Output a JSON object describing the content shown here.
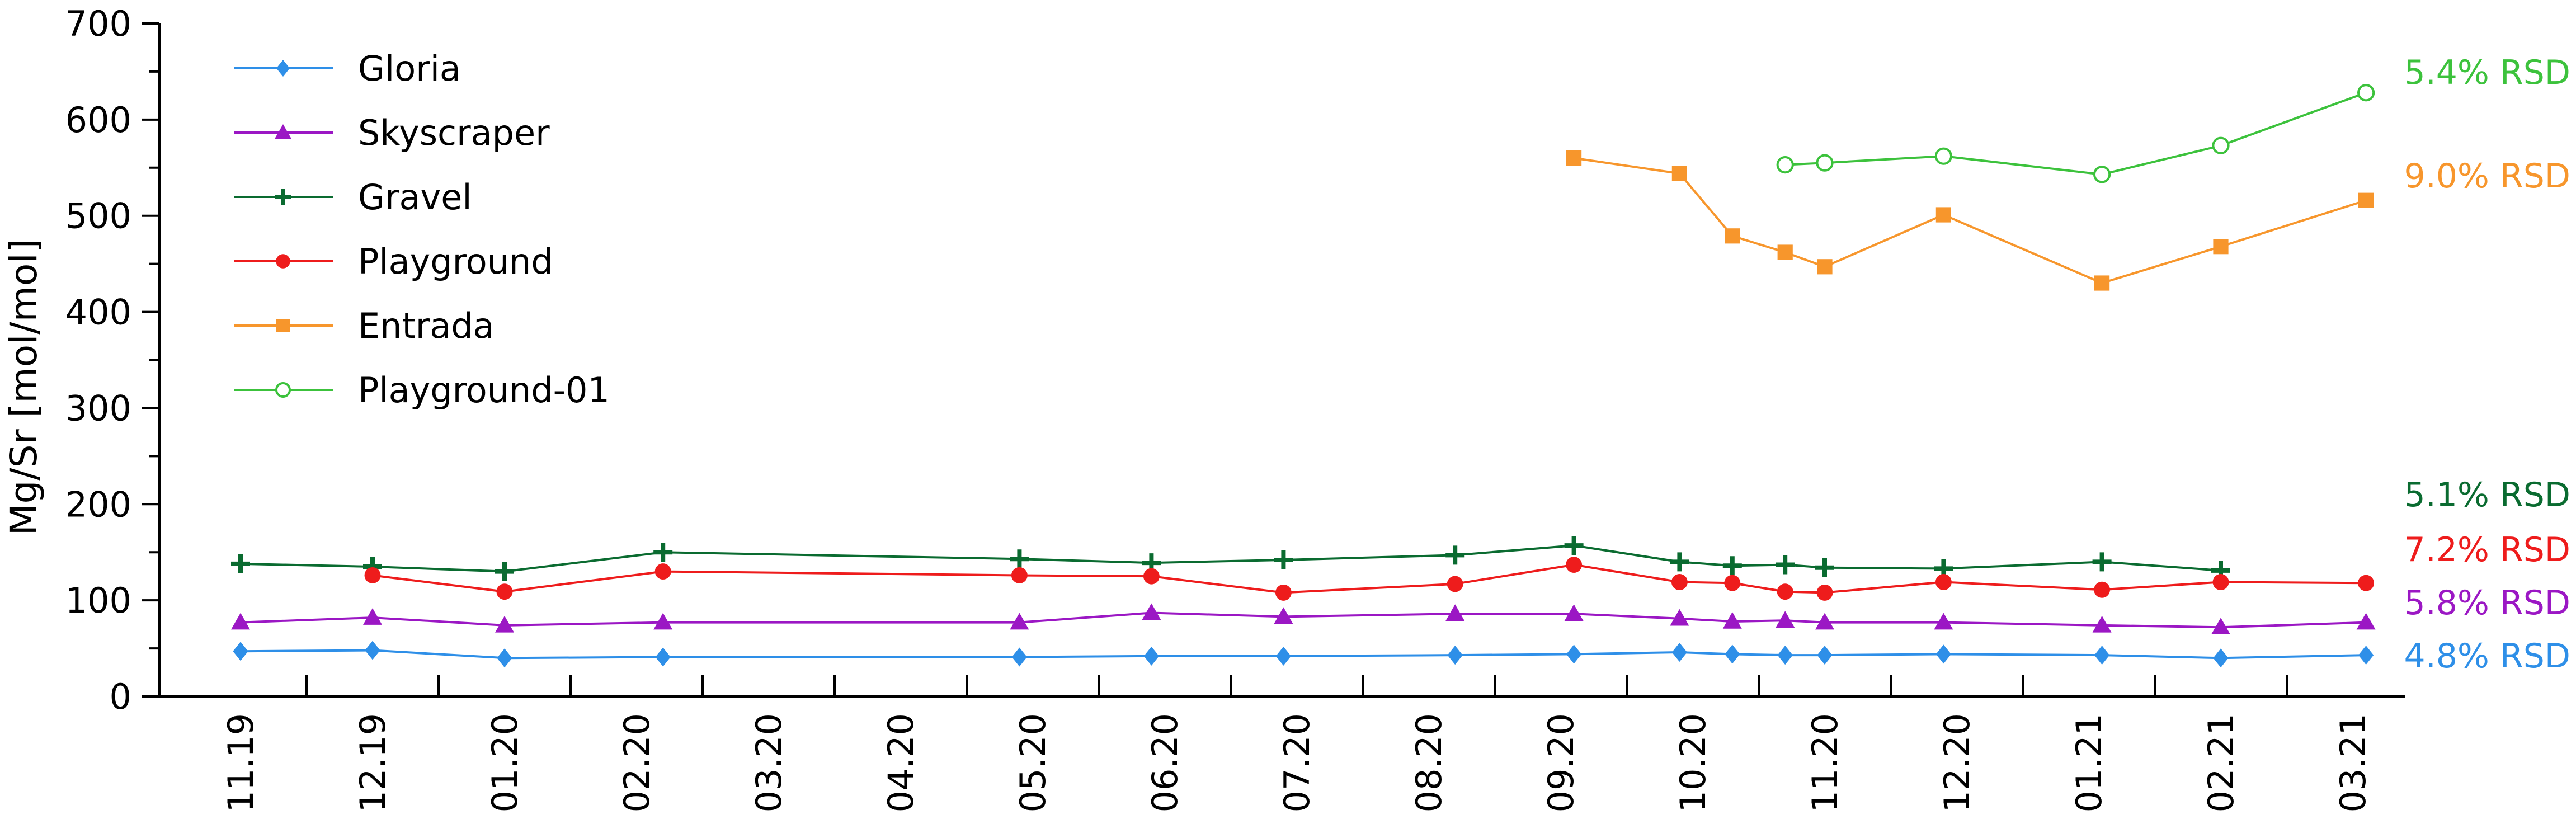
{
  "chart_data": {
    "type": "line",
    "ylabel": "Mg/Sr [mol/mol]",
    "ylim": [
      0,
      700
    ],
    "yticks": [
      0,
      100,
      200,
      300,
      400,
      500,
      600,
      700
    ],
    "xticks": [
      "11.19",
      "12.19",
      "01.20",
      "02.20",
      "03.20",
      "04.20",
      "05.20",
      "06.20",
      "07.20",
      "08.20",
      "09.20",
      "10.20",
      "11.20",
      "12.20",
      "01.21",
      "02.21",
      "03.21"
    ],
    "x_unit": "month index (0 = 11.19)",
    "legend_position": "top-left",
    "series": [
      {
        "name": "Gloria",
        "color": "#2E8FE8",
        "marker": "diamond",
        "x": [
          0,
          1,
          2,
          3.2,
          5.9,
          6.9,
          7.9,
          9.2,
          10.1,
          10.9,
          11.3,
          11.7,
          12.0,
          12.9,
          14.1,
          15.0,
          16.1
        ],
        "y": [
          47,
          48,
          40,
          41,
          41,
          42,
          42,
          43,
          44,
          46,
          44,
          43,
          43,
          44,
          43,
          40,
          43
        ],
        "rsd": "4.8% RSD"
      },
      {
        "name": "Skyscraper",
        "color": "#9B17C4",
        "marker": "triangle",
        "x": [
          0,
          1,
          2,
          3.2,
          5.9,
          6.9,
          7.9,
          9.2,
          10.1,
          10.9,
          11.3,
          11.7,
          12.0,
          12.9,
          14.1,
          15.0,
          16.1
        ],
        "y": [
          77,
          82,
          74,
          77,
          77,
          87,
          83,
          86,
          86,
          81,
          78,
          79,
          77,
          77,
          74,
          72,
          77
        ],
        "rsd": "5.8% RSD"
      },
      {
        "name": "Gravel",
        "color": "#0A6B30",
        "marker": "plus",
        "x": [
          0,
          1,
          2,
          3.2,
          5.9,
          6.9,
          7.9,
          9.2,
          10.1,
          10.9,
          11.3,
          11.7,
          12.0,
          12.9,
          14.1,
          15.0
        ],
        "y": [
          138,
          135,
          130,
          150,
          143,
          139,
          142,
          147,
          157,
          140,
          136,
          137,
          134,
          133,
          140,
          131
        ],
        "rsd": "5.1% RSD"
      },
      {
        "name": "Playground",
        "color": "#EE1C1C",
        "marker": "circle",
        "x": [
          1,
          2,
          3.2,
          5.9,
          6.9,
          7.9,
          9.2,
          10.1,
          10.9,
          11.3,
          11.7,
          12.0,
          12.9,
          14.1,
          15.0,
          16.1
        ],
        "y": [
          126,
          109,
          130,
          126,
          125,
          108,
          117,
          137,
          119,
          118,
          109,
          108,
          119,
          111,
          119,
          118
        ],
        "rsd": "7.2% RSD"
      },
      {
        "name": "Entrada",
        "color": "#F7962C",
        "marker": "square",
        "x": [
          10.1,
          10.9,
          11.3,
          11.7,
          12.0,
          12.9,
          14.1,
          15.0,
          16.1
        ],
        "y": [
          560,
          544,
          479,
          462,
          447,
          501,
          430,
          468,
          516
        ],
        "rsd": "9.0% RSD"
      },
      {
        "name": "Playground-01",
        "color": "#3CC23C",
        "marker": "open-circle",
        "x": [
          11.7,
          12.0,
          12.9,
          14.1,
          15.0,
          16.1
        ],
        "y": [
          553,
          555,
          562,
          543,
          573,
          628
        ],
        "rsd": "5.4% RSD"
      }
    ]
  }
}
